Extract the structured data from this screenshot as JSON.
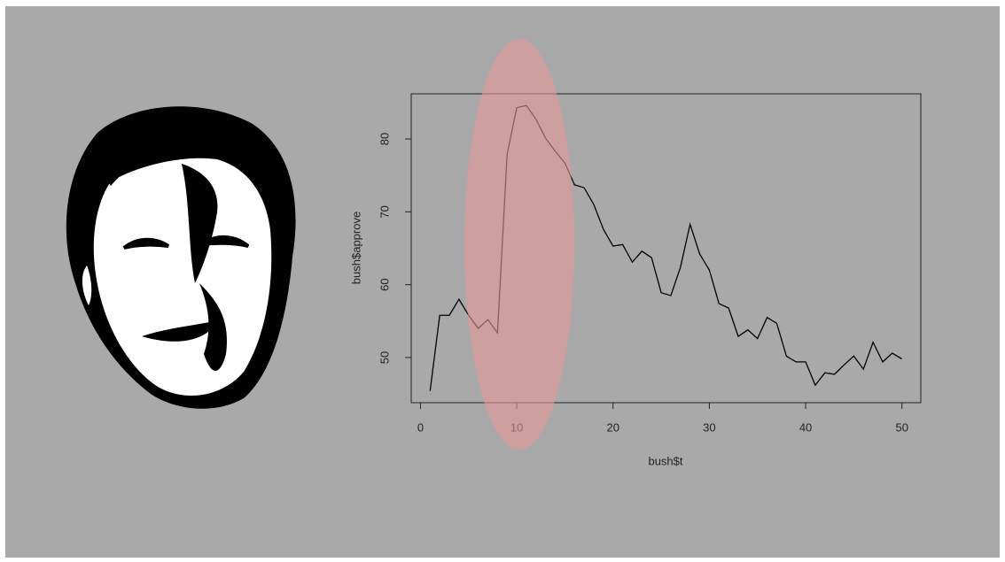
{
  "chart_data": {
    "type": "line",
    "x_label": "bush$t",
    "y_label": "bush$approve",
    "x": [
      1,
      2,
      3,
      4,
      5,
      6,
      7,
      8,
      9,
      10,
      11,
      12,
      13,
      14,
      15,
      16,
      17,
      18,
      19,
      20,
      21,
      22,
      23,
      24,
      25,
      26,
      27,
      28,
      29,
      30,
      31,
      32,
      33,
      34,
      35,
      36,
      37,
      38,
      39,
      40,
      41,
      42,
      43,
      44,
      45,
      46,
      47,
      48,
      49,
      50
    ],
    "values": [
      45.4,
      55.8,
      55.8,
      58.0,
      55.8,
      54.0,
      55.2,
      53.4,
      77.9,
      84.3,
      84.6,
      82.7,
      80.1,
      78.3,
      76.7,
      73.7,
      73.3,
      71.0,
      67.6,
      65.3,
      65.5,
      63.1,
      64.6,
      63.7,
      58.9,
      58.5,
      62.4,
      68.3,
      64.2,
      62.0,
      57.4,
      56.8,
      52.9,
      53.8,
      52.6,
      55.5,
      54.7,
      50.2,
      49.4,
      49.4,
      46.2,
      47.9,
      47.7,
      49.0,
      50.2,
      48.4,
      52.1,
      49.4,
      50.6,
      49.8
    ],
    "color": "#000000",
    "xlim": [
      -0.96,
      51.96
    ],
    "ylim": [
      43.8,
      86.2
    ],
    "xticks": [
      0,
      10,
      20,
      30,
      40,
      50
    ],
    "yticks": [
      50,
      60,
      70,
      80
    ]
  }
}
